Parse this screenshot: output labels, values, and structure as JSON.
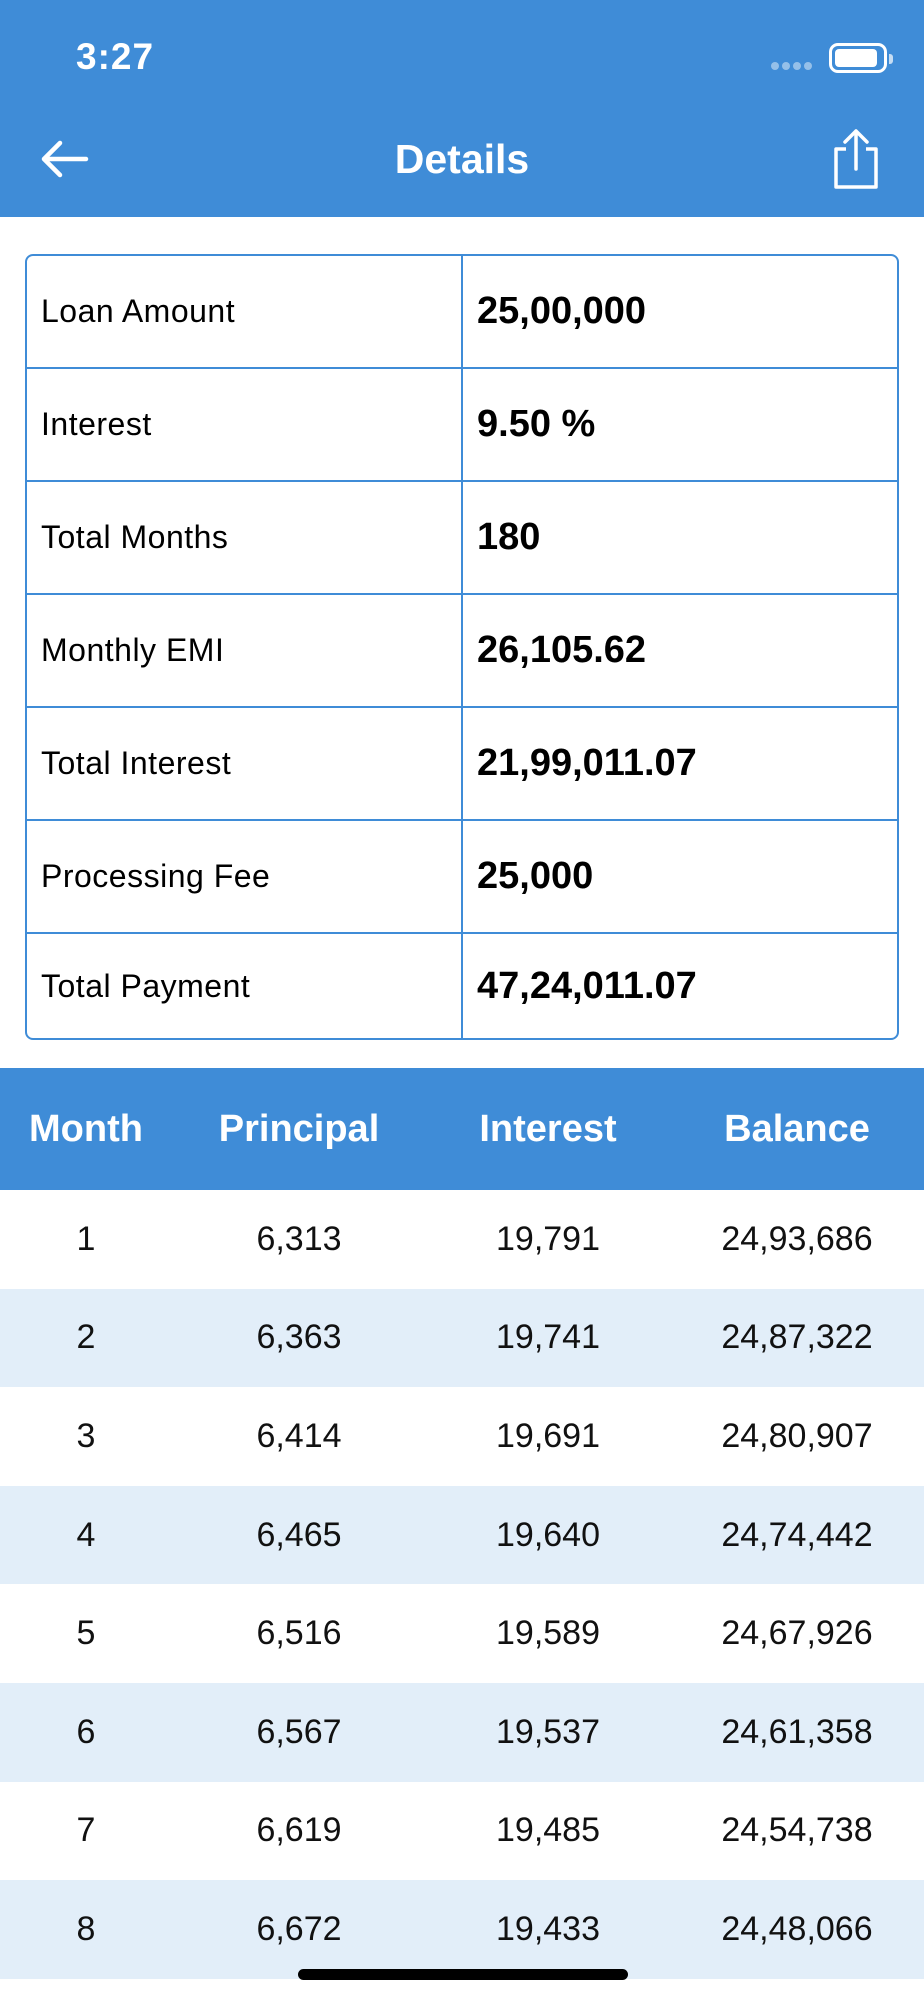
{
  "status_bar": {
    "time": "3:27"
  },
  "nav": {
    "title": "Details",
    "back_icon": "arrow-left-icon",
    "share_icon": "share-icon"
  },
  "colors": {
    "accent": "#3f8cd7",
    "row_alt": "#e2eef9"
  },
  "summary": [
    {
      "label": "Loan Amount",
      "value": "25,00,000"
    },
    {
      "label": "Interest",
      "value": "9.50 %"
    },
    {
      "label": "Total Months",
      "value": "180"
    },
    {
      "label": "Monthly EMI",
      "value": "26,105.62"
    },
    {
      "label": "Total Interest",
      "value": "21,99,011.07"
    },
    {
      "label": "Processing Fee",
      "value": "25,000"
    },
    {
      "label": "Total Payment",
      "value": "47,24,011.07"
    }
  ],
  "schedule": {
    "columns": [
      "Month",
      "Principal",
      "Interest",
      "Balance"
    ],
    "rows": [
      [
        "1",
        "6,313",
        "19,791",
        "24,93,686"
      ],
      [
        "2",
        "6,363",
        "19,741",
        "24,87,322"
      ],
      [
        "3",
        "6,414",
        "19,691",
        "24,80,907"
      ],
      [
        "4",
        "6,465",
        "19,640",
        "24,74,442"
      ],
      [
        "5",
        "6,516",
        "19,589",
        "24,67,926"
      ],
      [
        "6",
        "6,567",
        "19,537",
        "24,61,358"
      ],
      [
        "7",
        "6,619",
        "19,485",
        "24,54,738"
      ],
      [
        "8",
        "6,672",
        "19,433",
        "24,48,066"
      ]
    ]
  }
}
